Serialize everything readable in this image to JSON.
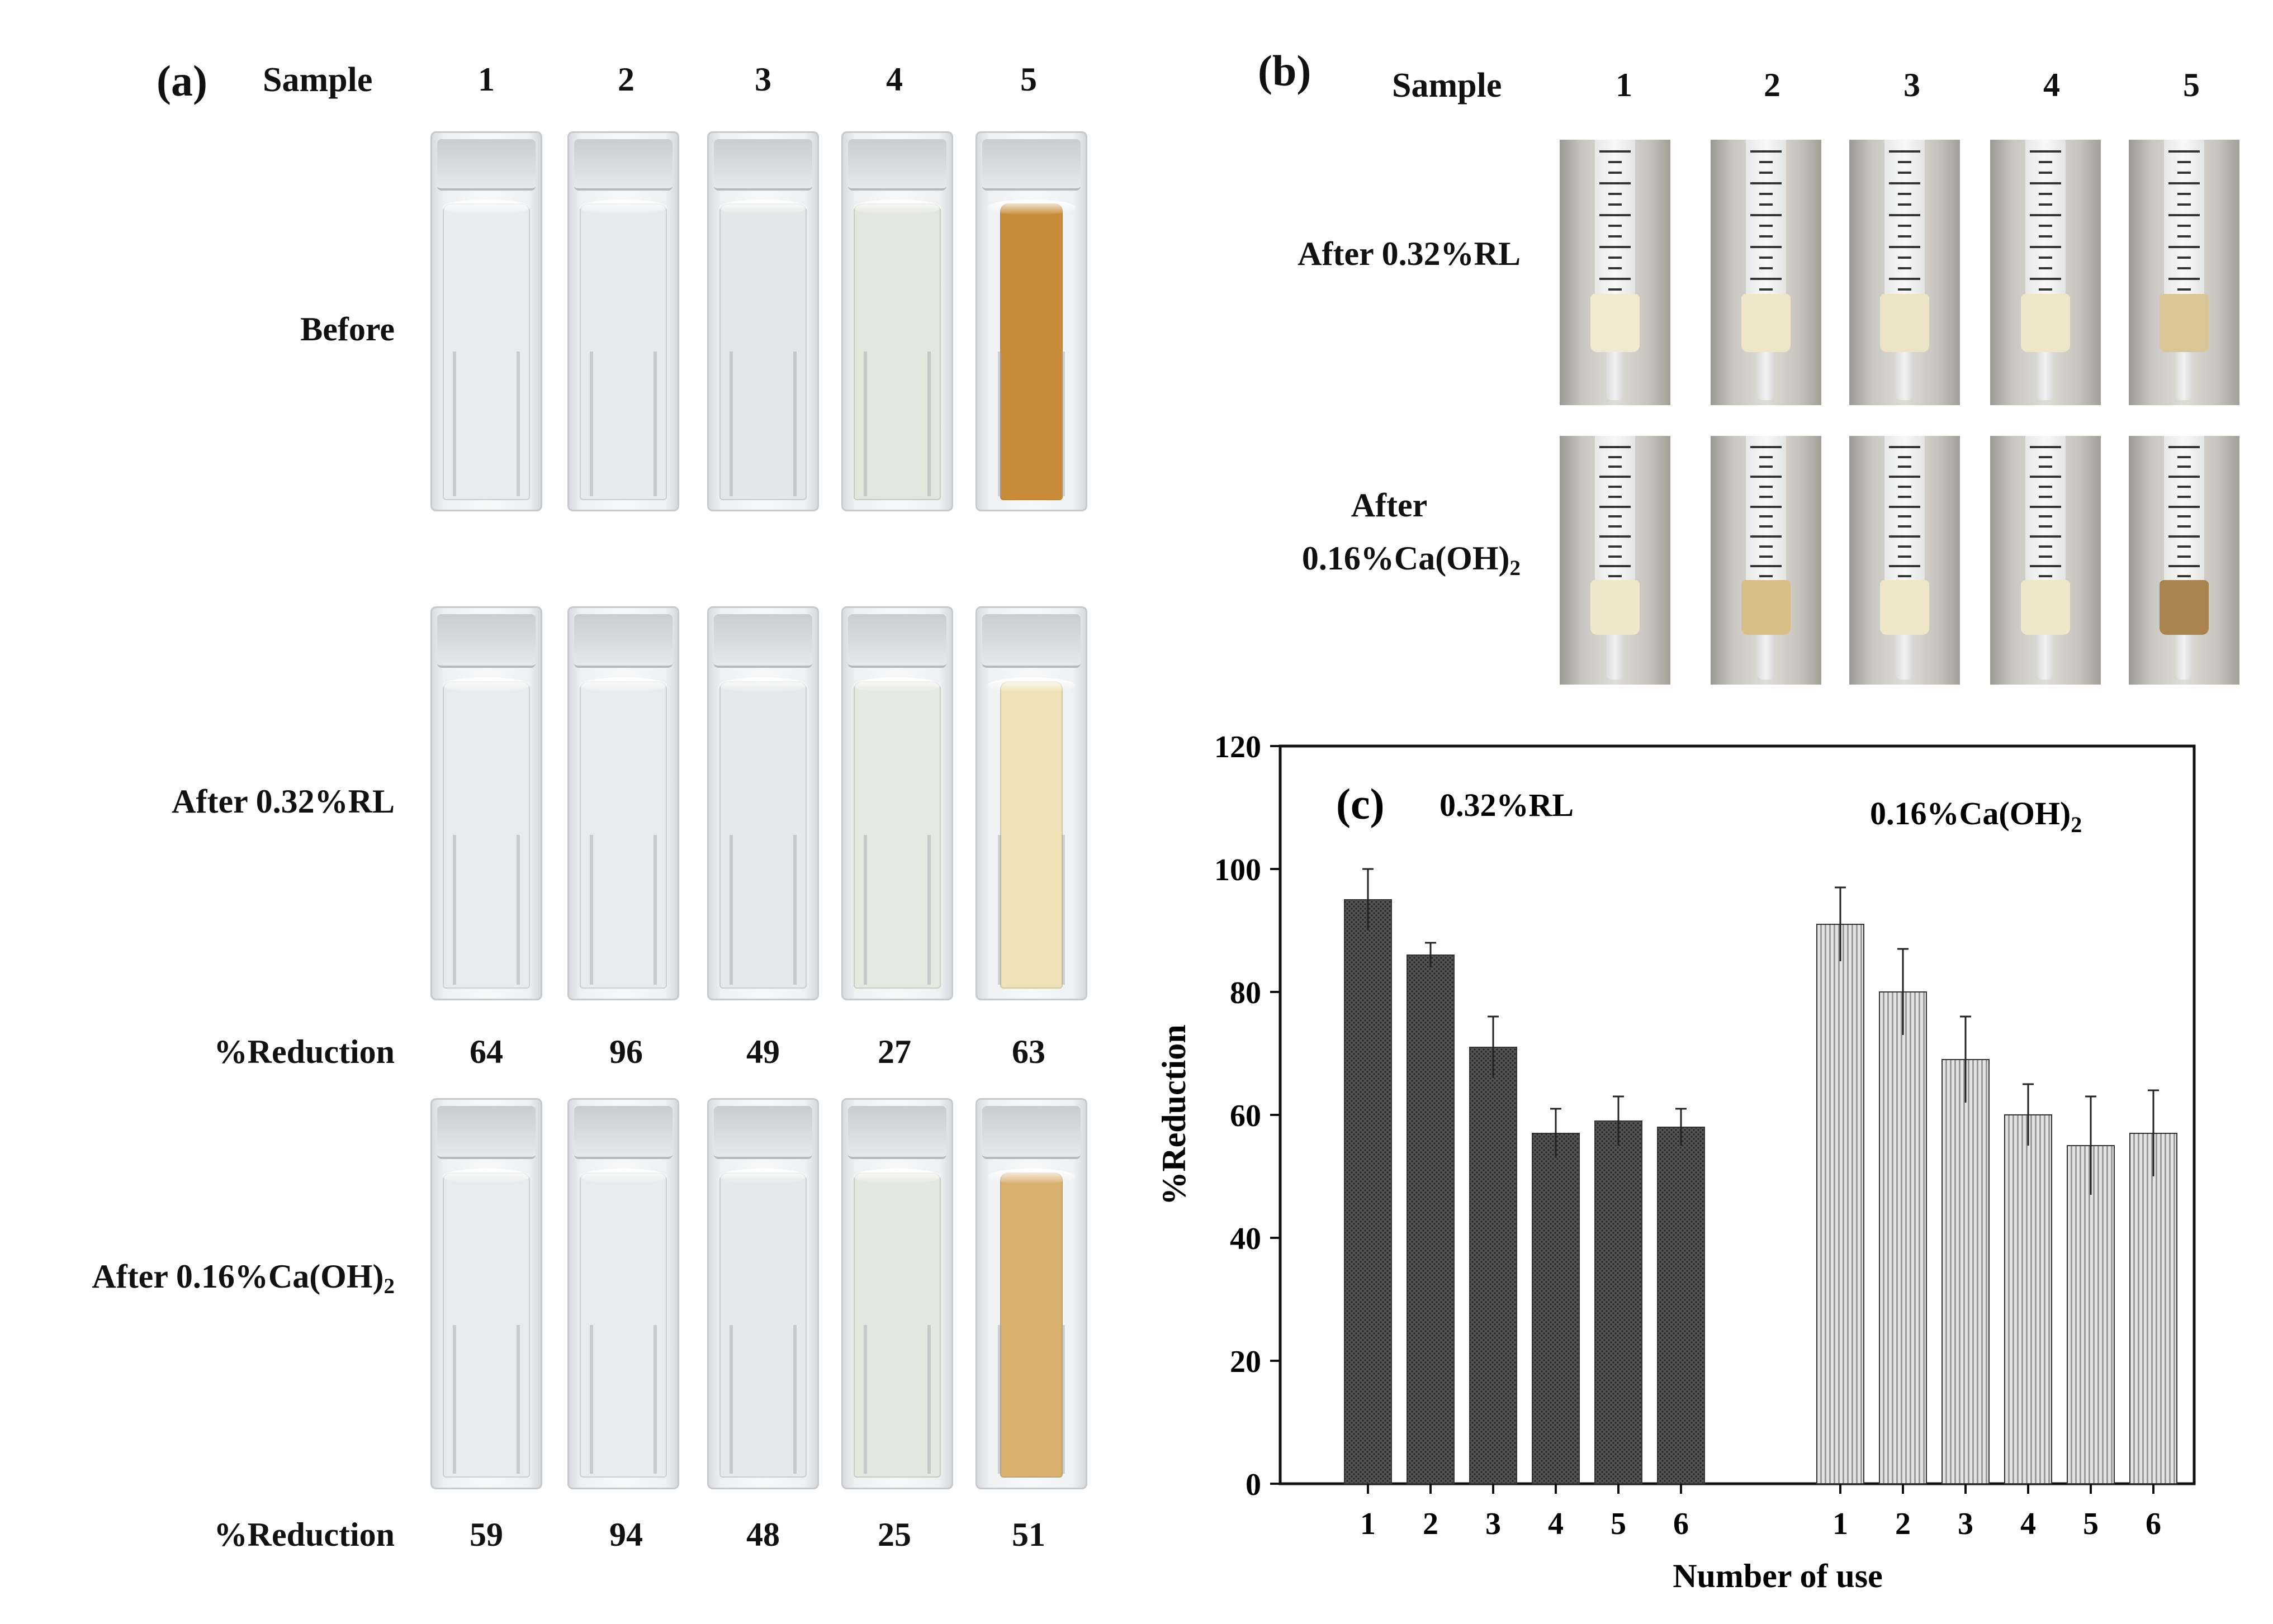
{
  "panel_a": {
    "letter": "(a)",
    "sample_header": "Sample",
    "sample_numbers": [
      "1",
      "2",
      "3",
      "4",
      "5"
    ],
    "rows": [
      {
        "label": "Before"
      },
      {
        "label": "After 0.32%RL"
      },
      {
        "label_main": "After 0.16%Ca(OH)",
        "label_sub": "2"
      }
    ],
    "reduction_label": "%Reduction",
    "reduction_rl": [
      "64",
      "96",
      "49",
      "27",
      "63"
    ],
    "reduction_caoh": [
      "59",
      "94",
      "48",
      "25",
      "51"
    ],
    "liquid_colors": {
      "before": [
        "#e9ecee",
        "#e7eaec",
        "#e4e7e8",
        "#e3e6dc",
        "#c98b38"
      ],
      "after_rl": [
        "#e8ebed",
        "#e8ebed",
        "#e6e9ea",
        "#e6e9e2",
        "#efe2b6"
      ],
      "after_caoh": [
        "#e8ebed",
        "#e8ebed",
        "#e6e9ea",
        "#e4e7e0",
        "#d9b06e"
      ]
    }
  },
  "panel_b": {
    "letter": "(b)",
    "sample_header": "Sample",
    "sample_numbers": [
      "1",
      "2",
      "3",
      "4",
      "5"
    ],
    "row1_label": "After 0.32%RL",
    "row2_label_line1": "After",
    "row2_label_main": "0.16%Ca(OH)",
    "row2_label_sub": "2",
    "plug_colors": {
      "after_rl": [
        "#f1ead0",
        "#efe6c8",
        "#ede4c5",
        "#efe6c7",
        "#d9c596"
      ],
      "after_caoh": [
        "#efe7c9",
        "#d8bd86",
        "#eee6c7",
        "#efe7c9",
        "#a9844e"
      ]
    }
  },
  "chart_data": {
    "type": "bar",
    "panel_letter": "(c)",
    "title": "",
    "xlabel": "Number of use",
    "ylabel": "%Reduction",
    "ylim": [
      0,
      120
    ],
    "yticks": [
      "0",
      "20",
      "40",
      "60",
      "80",
      "100",
      "120"
    ],
    "categories": [
      "1",
      "2",
      "3",
      "4",
      "5",
      "6"
    ],
    "series": [
      {
        "name": "0.32%RL",
        "name_main": "0.32%RL",
        "name_sub": "",
        "values": [
          95,
          86,
          71,
          57,
          59,
          58
        ],
        "errors": [
          5,
          2,
          5,
          4,
          4,
          3
        ],
        "color": "#4a4a4a"
      },
      {
        "name": "0.16%Ca(OH)2",
        "name_main": "0.16%Ca(OH)",
        "name_sub": "2",
        "values": [
          91,
          80,
          69,
          60,
          55,
          57
        ],
        "errors": [
          6,
          7,
          7,
          5,
          8,
          7
        ],
        "color": "#d2d2d2"
      }
    ],
    "grid": false,
    "legend": "in-plot above each group"
  }
}
